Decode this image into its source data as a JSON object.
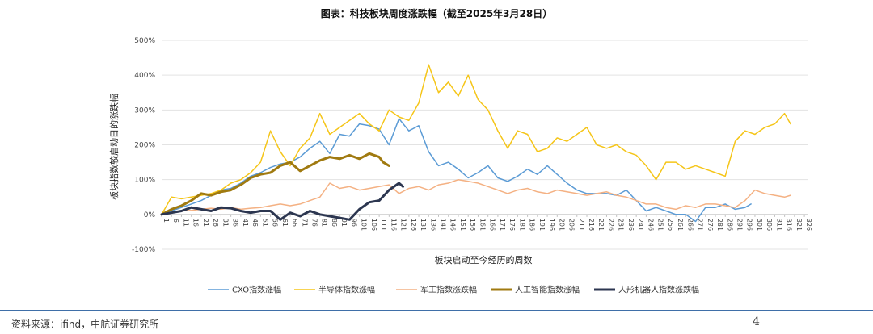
{
  "title": "图表：科技板块周度涨跌幅（截至2025年3月28日）",
  "footer": {
    "source": "资料来源：ifind，中航证券研究所",
    "page": "4"
  },
  "chart_data": {
    "type": "line",
    "title": "图表：科技板块周度涨跌幅（截至2025年3月28日）",
    "xlabel": "板块启动至今经历的周数",
    "ylabel": "板块指数较启动日的涨跌幅",
    "ylim": [
      -100,
      500
    ],
    "xlim": [
      1,
      328
    ],
    "grid": true,
    "legend": "bottom",
    "y_ticks": [
      "-100%",
      "0%",
      "100%",
      "200%",
      "300%",
      "400%",
      "500%"
    ],
    "x_ticks": [
      "1",
      "6",
      "11",
      "16",
      "21",
      "26",
      "31",
      "36",
      "41",
      "46",
      "51",
      "56",
      "61",
      "66",
      "71",
      "76",
      "81",
      "86",
      "91",
      "96",
      "101",
      "106",
      "111",
      "116",
      "121",
      "126",
      "131",
      "136",
      "141",
      "146",
      "151",
      "156",
      "161",
      "166",
      "171",
      "176",
      "181",
      "186",
      "191",
      "196",
      "201",
      "206",
      "211",
      "216",
      "221",
      "226",
      "231",
      "236",
      "241",
      "246",
      "251",
      "256",
      "261",
      "266",
      "271",
      "276",
      "281",
      "286",
      "291",
      "296",
      "301",
      "306",
      "311",
      "316",
      "321",
      "326"
    ],
    "series": [
      {
        "name": "CXO指数涨幅",
        "color": "#5b9bd5",
        "x": [
          1,
          6,
          11,
          16,
          21,
          26,
          31,
          36,
          41,
          46,
          51,
          56,
          61,
          66,
          71,
          76,
          81,
          86,
          91,
          96,
          101,
          106,
          111,
          116,
          121,
          126,
          131,
          136,
          141,
          146,
          151,
          156,
          161,
          166,
          171,
          176,
          181,
          186,
          191,
          196,
          201,
          206,
          211,
          216,
          221,
          226,
          231,
          236,
          241,
          246,
          251,
          256,
          261,
          266,
          271,
          276,
          281,
          286,
          291,
          296,
          299
        ],
        "values": [
          0,
          10,
          20,
          30,
          40,
          55,
          70,
          75,
          90,
          110,
          120,
          135,
          145,
          150,
          165,
          190,
          210,
          175,
          230,
          225,
          260,
          255,
          245,
          200,
          275,
          240,
          255,
          180,
          140,
          150,
          130,
          105,
          120,
          140,
          105,
          95,
          110,
          130,
          115,
          140,
          115,
          90,
          70,
          60,
          60,
          60,
          55,
          70,
          40,
          10,
          20,
          10,
          0,
          0,
          -20,
          20,
          20,
          30,
          15,
          20,
          30
        ]
      },
      {
        "name": "半导体指数涨幅",
        "color": "#f5c518",
        "x": [
          1,
          6,
          11,
          16,
          21,
          26,
          31,
          36,
          41,
          46,
          51,
          56,
          61,
          66,
          71,
          76,
          81,
          86,
          91,
          96,
          101,
          106,
          111,
          116,
          121,
          126,
          131,
          136,
          141,
          146,
          151,
          156,
          161,
          166,
          171,
          176,
          181,
          186,
          191,
          196,
          201,
          206,
          211,
          216,
          221,
          226,
          231,
          236,
          241,
          246,
          251,
          256,
          261,
          266,
          271,
          276,
          281,
          286,
          291,
          296,
          301,
          306,
          311,
          316,
          319
        ],
        "values": [
          0,
          50,
          45,
          50,
          55,
          60,
          70,
          90,
          100,
          120,
          150,
          240,
          180,
          140,
          190,
          220,
          290,
          230,
          250,
          270,
          290,
          260,
          240,
          300,
          280,
          270,
          320,
          430,
          350,
          380,
          340,
          400,
          330,
          300,
          240,
          190,
          240,
          230,
          180,
          190,
          220,
          210,
          230,
          250,
          200,
          190,
          200,
          180,
          170,
          140,
          100,
          150,
          150,
          130,
          140,
          130,
          120,
          110,
          210,
          240,
          230,
          250,
          260,
          290,
          260
        ]
      },
      {
        "name": "军工指数涨跌幅",
        "color": "#f4b183",
        "x": [
          1,
          6,
          11,
          16,
          21,
          26,
          31,
          36,
          41,
          46,
          51,
          56,
          61,
          66,
          71,
          76,
          81,
          86,
          91,
          96,
          101,
          106,
          111,
          116,
          121,
          126,
          131,
          136,
          141,
          146,
          151,
          156,
          161,
          166,
          171,
          176,
          181,
          186,
          191,
          196,
          201,
          206,
          211,
          216,
          221,
          226,
          231,
          236,
          241,
          246,
          251,
          256,
          261,
          266,
          271,
          276,
          281,
          286,
          291,
          296,
          301,
          306,
          311,
          316,
          319
        ],
        "values": [
          0,
          5,
          10,
          12,
          15,
          18,
          15,
          20,
          15,
          18,
          20,
          25,
          30,
          25,
          30,
          40,
          50,
          90,
          75,
          80,
          70,
          75,
          80,
          85,
          60,
          75,
          80,
          70,
          85,
          90,
          100,
          95,
          90,
          80,
          70,
          60,
          70,
          75,
          65,
          60,
          70,
          65,
          60,
          55,
          60,
          65,
          55,
          50,
          40,
          30,
          30,
          20,
          15,
          25,
          20,
          30,
          30,
          25,
          20,
          40,
          70,
          60,
          55,
          50,
          55
        ]
      },
      {
        "name": "人工智能指数涨幅",
        "color": "#a07a10",
        "x": [
          1,
          6,
          11,
          16,
          21,
          26,
          31,
          36,
          41,
          46,
          51,
          56,
          61,
          66,
          71,
          76,
          81,
          86,
          91,
          96,
          101,
          106,
          111,
          113,
          116
        ],
        "values": [
          0,
          15,
          25,
          40,
          60,
          55,
          65,
          70,
          85,
          105,
          115,
          120,
          140,
          150,
          125,
          140,
          155,
          165,
          160,
          170,
          160,
          175,
          165,
          150,
          140
        ]
      },
      {
        "name": "人形机器人指数涨跌幅",
        "color": "#2c3650",
        "x": [
          1,
          6,
          11,
          16,
          21,
          26,
          31,
          36,
          41,
          46,
          51,
          56,
          61,
          66,
          71,
          76,
          81,
          86,
          91,
          96,
          101,
          106,
          111,
          116,
          121,
          123
        ],
        "values": [
          0,
          5,
          10,
          20,
          15,
          10,
          20,
          18,
          10,
          5,
          10,
          10,
          -15,
          5,
          -5,
          10,
          0,
          -5,
          -10,
          -15,
          15,
          35,
          40,
          70,
          90,
          80
        ]
      }
    ]
  }
}
